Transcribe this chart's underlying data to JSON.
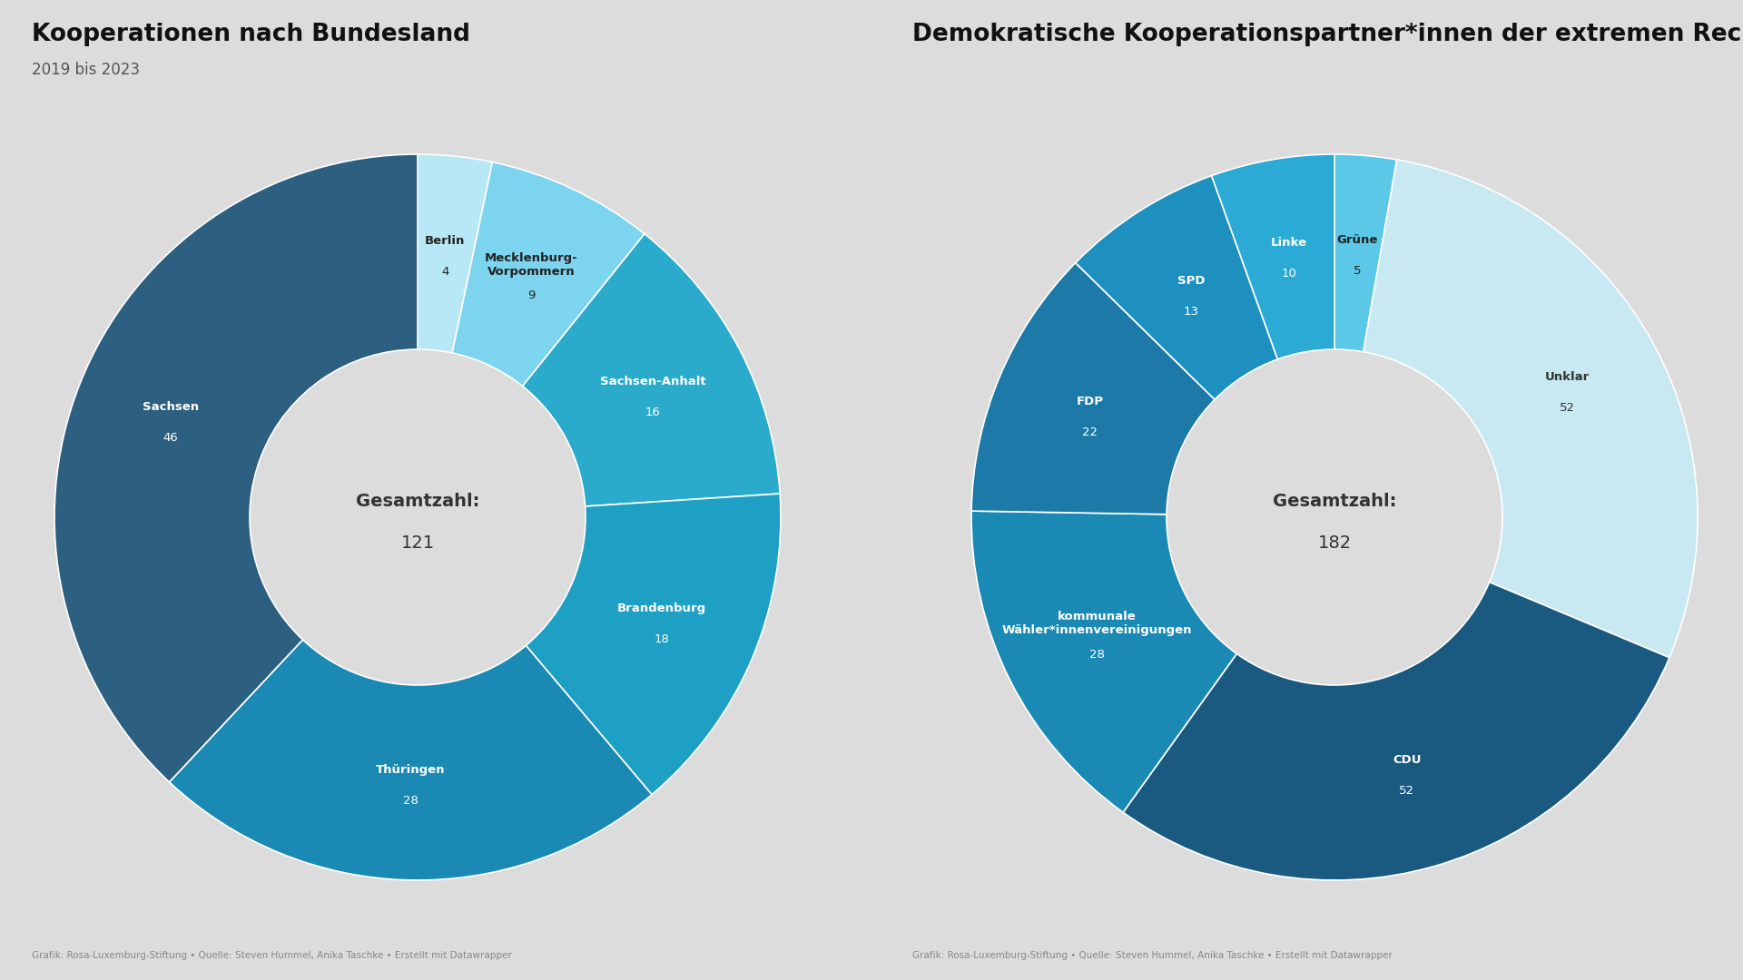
{
  "bg_color": "#dcdcdc",
  "chart1": {
    "title": "Kooperationen nach Bundesland",
    "subtitle": "2019 bis 2023",
    "total": 121,
    "total_label": "Gesamtzahl:",
    "slices": [
      {
        "label": "Berlin",
        "value": 4,
        "color": "#b8e8f5",
        "text_color": "#222222"
      },
      {
        "label": "Mecklenburg-\nVorpommern",
        "value": 9,
        "color": "#7dd4ee",
        "text_color": "#222222"
      },
      {
        "label": "Sachsen-Anhalt",
        "value": 16,
        "color": "#2aabcc",
        "text_color": "#ffffff"
      },
      {
        "label": "Brandenburg",
        "value": 18,
        "color": "#1e9fc4",
        "text_color": "#ffffff"
      },
      {
        "label": "Thüringen",
        "value": 28,
        "color": "#1a8ab5",
        "text_color": "#ffffff"
      },
      {
        "label": "Sachsen",
        "value": 46,
        "color": "#2d6080",
        "text_color": "#ffffff"
      }
    ],
    "footer": "Grafik: Rosa-Luxemburg-Stiftung • Quelle: Steven Hummel, Anika Taschke • Erstellt mit Datawrapper"
  },
  "chart2": {
    "title": "Demokratische Kooperationspartner*innen der extremen Rechten",
    "total": 182,
    "total_label": "Gesamtzahl:",
    "slices": [
      {
        "label": "Grüne",
        "value": 5,
        "color": "#5bc8e8",
        "text_color": "#222222"
      },
      {
        "label": "Unklar",
        "value": 52,
        "color": "#c8e8f2",
        "text_color": "#333333"
      },
      {
        "label": "CDU",
        "value": 52,
        "color": "#1a5a80",
        "text_color": "#ffffff"
      },
      {
        "label": "kommunale\nWähler*innenvereinigungen",
        "value": 28,
        "color": "#1a8ab5",
        "text_color": "#ffffff"
      },
      {
        "label": "FDP",
        "value": 22,
        "color": "#1d7aa8",
        "text_color": "#ffffff"
      },
      {
        "label": "SPD",
        "value": 13,
        "color": "#1e90c0",
        "text_color": "#ffffff"
      },
      {
        "label": "Linke",
        "value": 10,
        "color": "#2aaad4",
        "text_color": "#ffffff"
      }
    ],
    "footer": "Grafik: Rosa-Luxemburg-Stiftung • Quelle: Steven Hummel, Anika Taschke • Erstellt mit Datawrapper"
  }
}
